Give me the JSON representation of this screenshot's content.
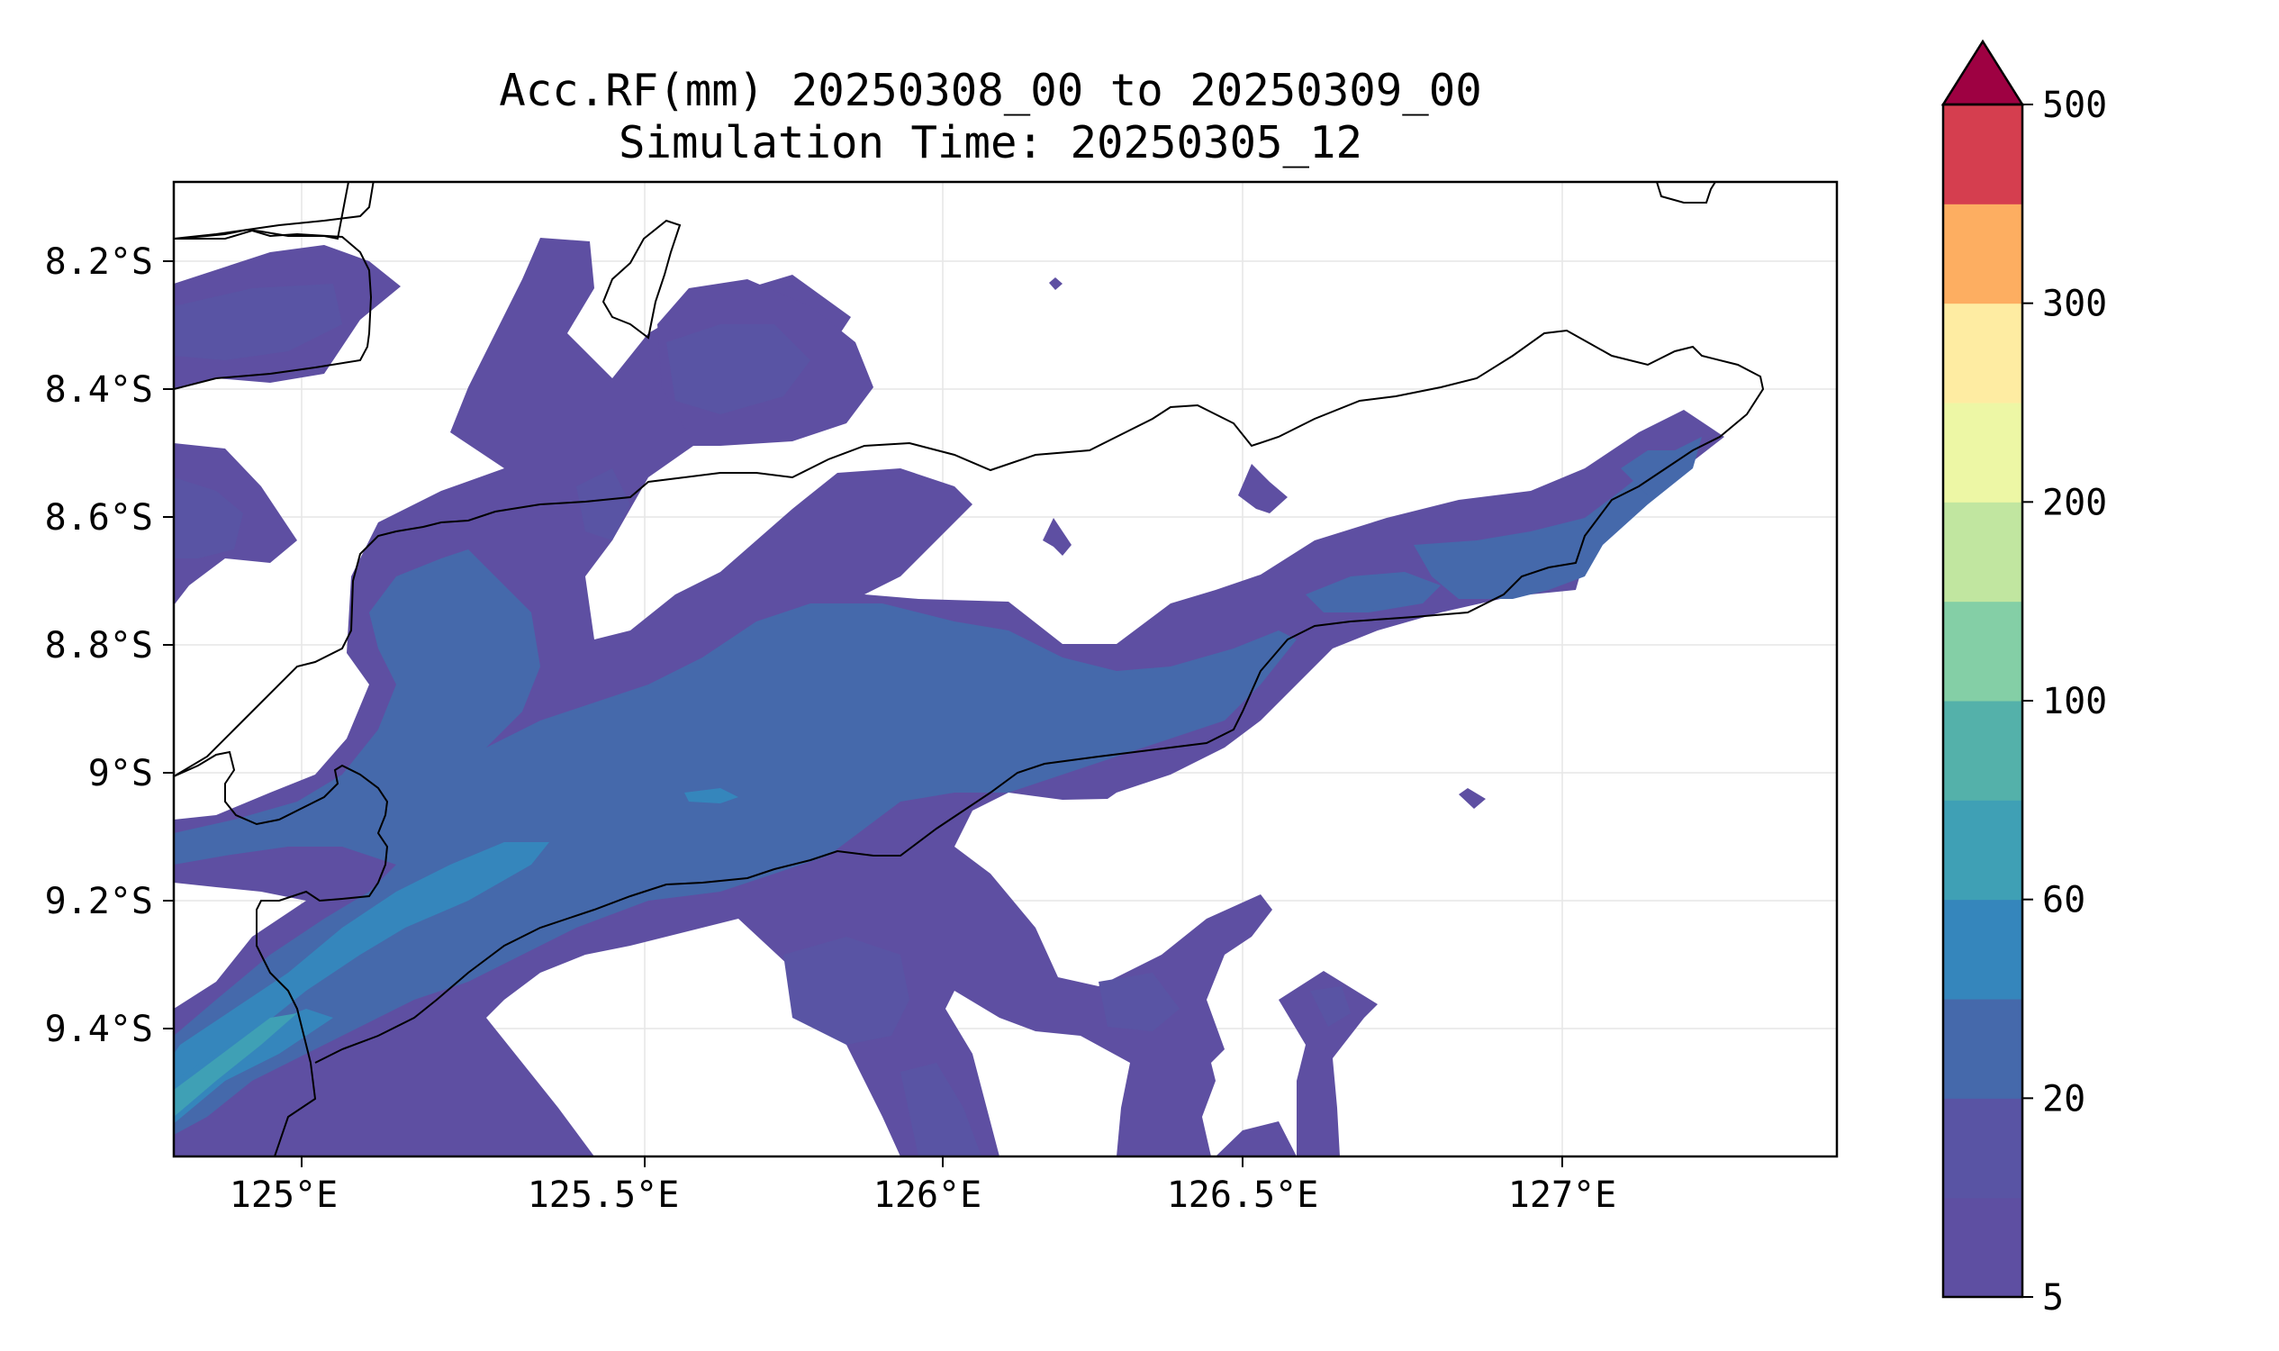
{
  "map": {
    "title_line1": "Acc.RF(mm) 20250308_00 to 20250309_00",
    "title_line2": "Simulation Time: 20250305_12",
    "x_ticks": [
      "125°E",
      "125.5°E",
      "126°E",
      "126.5°E",
      "127°E"
    ],
    "y_ticks": [
      "8.2°S",
      "8.4°S",
      "8.6°S",
      "8.8°S",
      "9°S",
      "9.2°S",
      "9.4°S"
    ],
    "grid": true
  },
  "colorbar": {
    "levels": [
      5,
      10,
      20,
      40,
      60,
      80,
      100,
      150,
      200,
      250,
      300,
      400,
      500
    ],
    "tick_labels": [
      "5",
      "20",
      "60",
      "100",
      "200",
      "300",
      "500"
    ],
    "extend": "max",
    "colors": [
      "#5e4fa2",
      "#5954a4",
      "#4569ab",
      "#3586bc",
      "#3fa0b5",
      "#54b1aa",
      "#84cfa6",
      "#c1e6a0",
      "#edf7a5",
      "#feeca2",
      "#fdae61",
      "#d53e4f",
      "#9e0142"
    ]
  },
  "legend": {
    "colors_named": {
      "low": "#5e4fa2",
      "mid": "#4569ab",
      "high": "#3fa0b5",
      "extreme": "#9e0142"
    }
  }
}
